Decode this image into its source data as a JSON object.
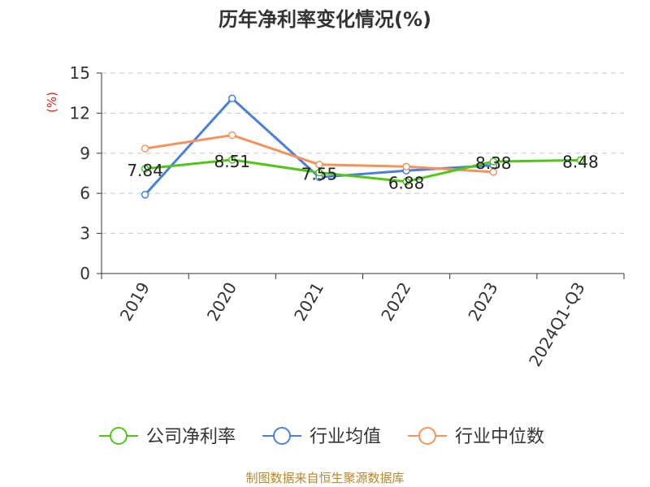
{
  "chart_data": {
    "type": "line",
    "title": "历年净利率变化情况(%)",
    "ylabel": "(%)",
    "xlabel": "",
    "categories": [
      "2019",
      "2020",
      "2021",
      "2022",
      "2023",
      "2024Q1-Q3"
    ],
    "ylim": [
      0,
      15
    ],
    "yticks": [
      0,
      3,
      6,
      9,
      12,
      15
    ],
    "grid": true,
    "legend_position": "bottom",
    "series": [
      {
        "name": "公司净利率",
        "color": "#52c41a",
        "values": [
          7.84,
          8.51,
          7.55,
          6.88,
          8.38,
          8.48
        ],
        "labels": [
          "7.84",
          "8.51",
          "7.55",
          "6.88",
          "8.38",
          "8.48"
        ]
      },
      {
        "name": "行业均值",
        "color": "#4a7fdc",
        "values": [
          5.9,
          13.1,
          7.2,
          7.7,
          8.1,
          null
        ]
      },
      {
        "name": "行业中位数",
        "color": "#f4935f",
        "values": [
          9.35,
          10.35,
          8.15,
          8.0,
          7.6,
          null
        ]
      }
    ]
  },
  "footer": {
    "source": "制图数据来自恒生聚源数据库"
  }
}
